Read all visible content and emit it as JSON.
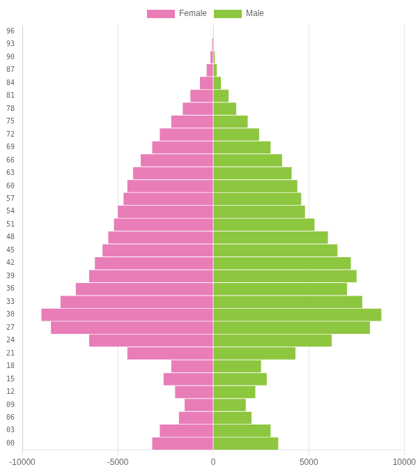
{
  "chart_data": {
    "type": "bar",
    "orientation": "horizontal",
    "stacked": true,
    "categories": [
      "00",
      "03",
      "06",
      "09",
      "12",
      "15",
      "18",
      "21",
      "24",
      "27",
      "30",
      "33",
      "36",
      "39",
      "42",
      "45",
      "48",
      "51",
      "54",
      "57",
      "60",
      "63",
      "66",
      "69",
      "72",
      "75",
      "78",
      "81",
      "84",
      "87",
      "90",
      "93",
      "96"
    ],
    "series": [
      {
        "name": "Female",
        "color": "#e87db8",
        "values": [
          -3200,
          -2800,
          -1800,
          -1500,
          -2000,
          -2600,
          -2200,
          -4500,
          -6500,
          -8500,
          -9000,
          -8000,
          -7200,
          -6500,
          -6200,
          -5800,
          -5500,
          -5200,
          -5000,
          -4700,
          -4500,
          -4200,
          -3800,
          -3200,
          -2800,
          -2200,
          -1600,
          -1200,
          -700,
          -350,
          -150,
          -60,
          -20
        ]
      },
      {
        "name": "Male",
        "color": "#8dc63f",
        "values": [
          3400,
          3000,
          2000,
          1700,
          2200,
          2800,
          2500,
          4300,
          6200,
          8200,
          8800,
          7800,
          7000,
          7500,
          7200,
          6500,
          6000,
          5300,
          4800,
          4600,
          4400,
          4100,
          3600,
          3000,
          2400,
          1800,
          1200,
          800,
          400,
          180,
          80,
          30,
          10
        ]
      }
    ],
    "xlim": [
      -10000,
      10000
    ],
    "xticks": [
      -10000,
      -5000,
      0,
      5000,
      10000
    ],
    "grid": true,
    "legend": "top"
  }
}
